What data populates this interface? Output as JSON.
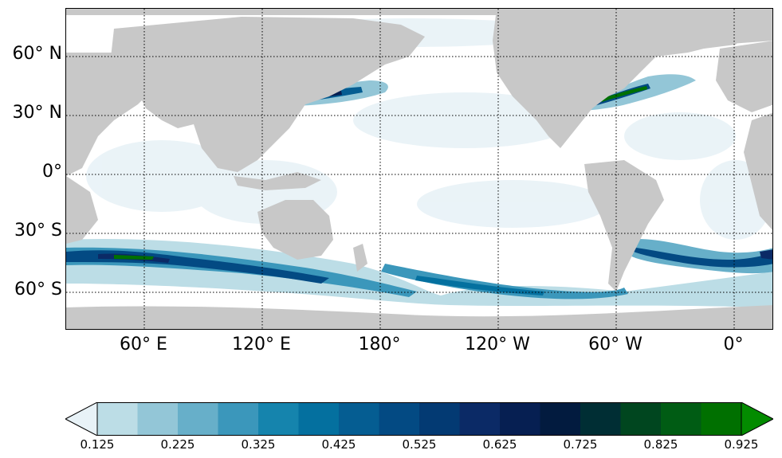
{
  "map": {
    "lat_labels": [
      "60° N",
      "30° N",
      "0°",
      "30° S",
      "60° S"
    ],
    "lon_labels": [
      "60° E",
      "120° E",
      "180°",
      "120° W",
      "60° W",
      "0°"
    ],
    "land_color": "#c8c8c8",
    "ocean_color": "#ffffff",
    "gridline_style": "dotted"
  },
  "colorbar": {
    "tick_labels": [
      "0.125",
      "0.225",
      "0.325",
      "0.425",
      "0.525",
      "0.625",
      "0.725",
      "0.825",
      "0.925"
    ],
    "colors": [
      "#e8f2f7",
      "#bcdde6",
      "#93c6d7",
      "#67afc9",
      "#3b97bb",
      "#1584ad",
      "#04709f",
      "#055d92",
      "#034a83",
      "#033a73",
      "#0b2a66",
      "#061f52",
      "#021b3f",
      "#002e34",
      "#00461f",
      "#005c14",
      "#007000",
      "#038b00"
    ],
    "extend": "both"
  }
}
